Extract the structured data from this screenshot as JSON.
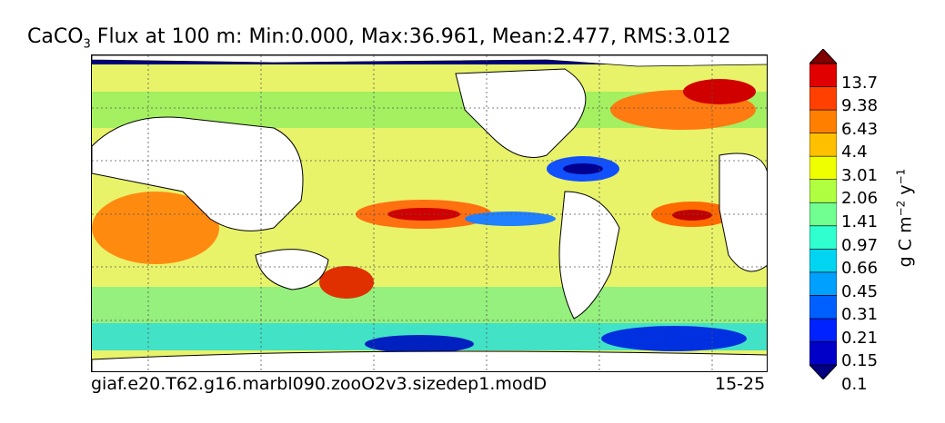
{
  "title": {
    "prefix": "CaCO",
    "subscript": "3",
    "rest": " Flux at 100 m: Min:0.000, Max:36.961, Mean:2.477, RMS:3.012"
  },
  "footer": {
    "case_name": "giaf.e20.T62.g16.marbl090.zooO2v3.sizedep1.modD",
    "years": "15-25"
  },
  "colorbar": {
    "labels": [
      "13.7",
      "9.38",
      "6.43",
      "4.4",
      "3.01",
      "2.06",
      "1.41",
      "0.97",
      "0.66",
      "0.45",
      "0.31",
      "0.21",
      "0.15",
      "0.1"
    ],
    "colors": [
      "#000080",
      "#0000c8",
      "#0022ff",
      "#0060ff",
      "#00a0ff",
      "#00d4f0",
      "#30ffd0",
      "#70ff90",
      "#b0ff40",
      "#f0ff00",
      "#ffc000",
      "#ff8000",
      "#ff4000",
      "#e00000",
      "#800000"
    ],
    "units_text": "g C m",
    "units_exp1": "−2",
    "units_mid": " y",
    "units_exp2": "−1"
  }
}
